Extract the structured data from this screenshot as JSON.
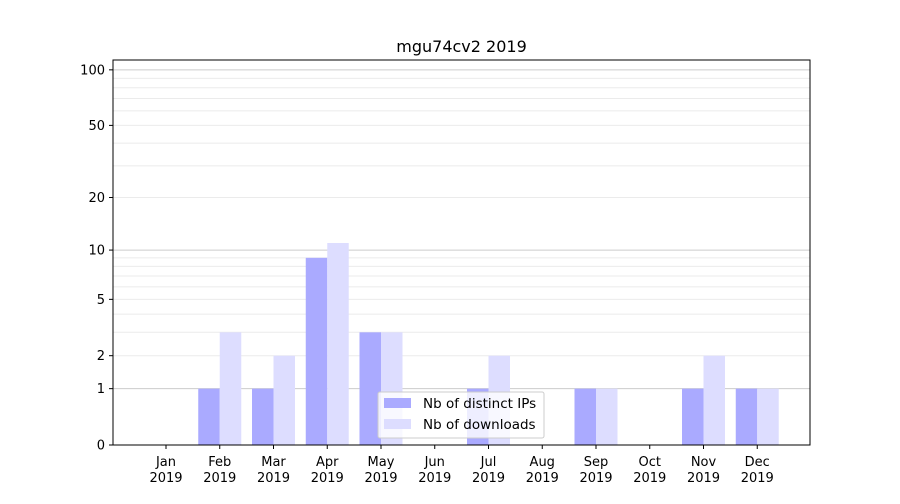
{
  "chart_data": {
    "type": "bar",
    "title": "mgu74cv2 2019",
    "xlabel": "",
    "ylabel": "",
    "yscale": "symlog (log of 1+y)",
    "ylim": [
      0,
      113
    ],
    "yticks": [
      0,
      1,
      2,
      5,
      10,
      20,
      50,
      100
    ],
    "grid": true,
    "legend_position": "lower-center",
    "categories": [
      "Jan\n2019",
      "Feb\n2019",
      "Mar\n2019",
      "Apr\n2019",
      "May\n2019",
      "Jun\n2019",
      "Jul\n2019",
      "Aug\n2019",
      "Sep\n2019",
      "Oct\n2019",
      "Nov\n2019",
      "Dec\n2019"
    ],
    "series": [
      {
        "name": "Nb of distinct IPs",
        "color": "#aaaaff",
        "values": [
          0,
          1,
          1,
          9,
          3,
          0,
          1,
          0,
          1,
          0,
          1,
          1
        ]
      },
      {
        "name": "Nb of downloads",
        "color": "#ddddff",
        "values": [
          0,
          3,
          2,
          11,
          3,
          0,
          2,
          0,
          1,
          0,
          2,
          1
        ]
      }
    ]
  }
}
